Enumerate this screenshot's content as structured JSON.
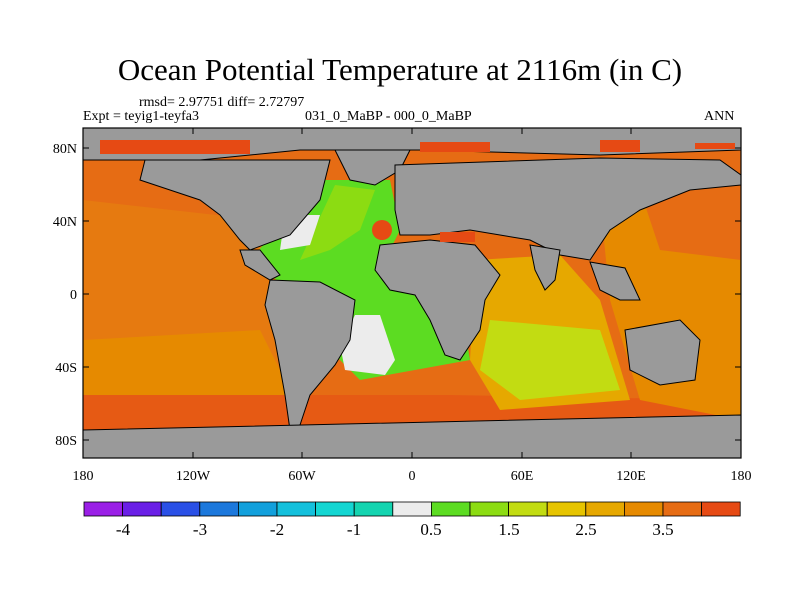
{
  "title": "Ocean Potential Temperature at 2116m (in C)",
  "stats_line": "rmsd= 2.97751 diff= 2.72797",
  "experiment": "Expt = teyig1-teyfa3",
  "comparison": "031_0_MaBP - 000_0_MaBP",
  "season": "ANN",
  "lat_labels": [
    "80N",
    "40N",
    "0",
    "40S",
    "80S"
  ],
  "lon_labels": [
    "180",
    "120W",
    "60W",
    "0",
    "60E",
    "120E",
    "180"
  ],
  "colorbar": {
    "colors": [
      "#9a1fe6",
      "#6a1fe6",
      "#2a50e6",
      "#1c78dc",
      "#12a0dc",
      "#14c0dc",
      "#14d6d2",
      "#14d4b0",
      "#ececec",
      "#5cdc22",
      "#8cdc12",
      "#c2dc12",
      "#e6c400",
      "#e6a800",
      "#e68a00",
      "#e66c14",
      "#e64a14"
    ],
    "labels": [
      "-4",
      "-3",
      "-2",
      "-1",
      "0.5",
      "1.5",
      "2.5",
      "3.5"
    ],
    "land_color": "#9a9a9a"
  }
}
